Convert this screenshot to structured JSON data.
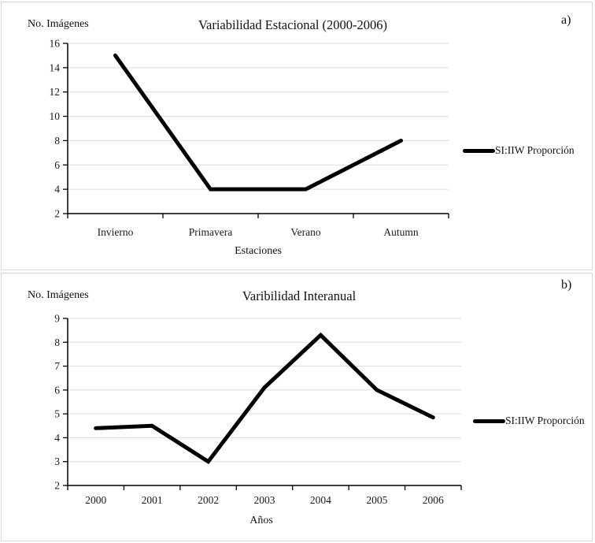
{
  "page": {
    "background": "#ffffff",
    "panel_border_color": "#d9d9d9"
  },
  "colors": {
    "line": "#000000",
    "axis": "#000000",
    "grid": "#dcdcdc",
    "text": "#1a1a1a"
  },
  "chart_data": [
    {
      "type": "line",
      "panel_label": "a)",
      "title": "Variabilidad Estacional (2000-2006)",
      "y_axis_label": "No. Imágenes",
      "xlabel": "Estaciones",
      "categories": [
        "Invierno",
        "Primavera",
        "Verano",
        "Autumn"
      ],
      "series": [
        {
          "name": "SI:IIW Proporción",
          "values": [
            15,
            4,
            4,
            8
          ]
        }
      ],
      "ylim": [
        2,
        16
      ],
      "ytick_step": 2,
      "grid": true,
      "legend_position": "right"
    },
    {
      "type": "line",
      "panel_label": "b)",
      "title": "Varibilidad Interanual",
      "y_axis_label": "No. Imágenes",
      "xlabel": "Años",
      "categories": [
        "2000",
        "2001",
        "2002",
        "2003",
        "2004",
        "2005",
        "2006"
      ],
      "series": [
        {
          "name": "SI:IIW Proporción",
          "values": [
            4.4,
            4.5,
            3,
            6.1,
            8.3,
            6,
            4.85
          ]
        }
      ],
      "ylim": [
        2,
        9
      ],
      "ytick_step": 1,
      "grid": true,
      "legend_position": "right"
    }
  ]
}
